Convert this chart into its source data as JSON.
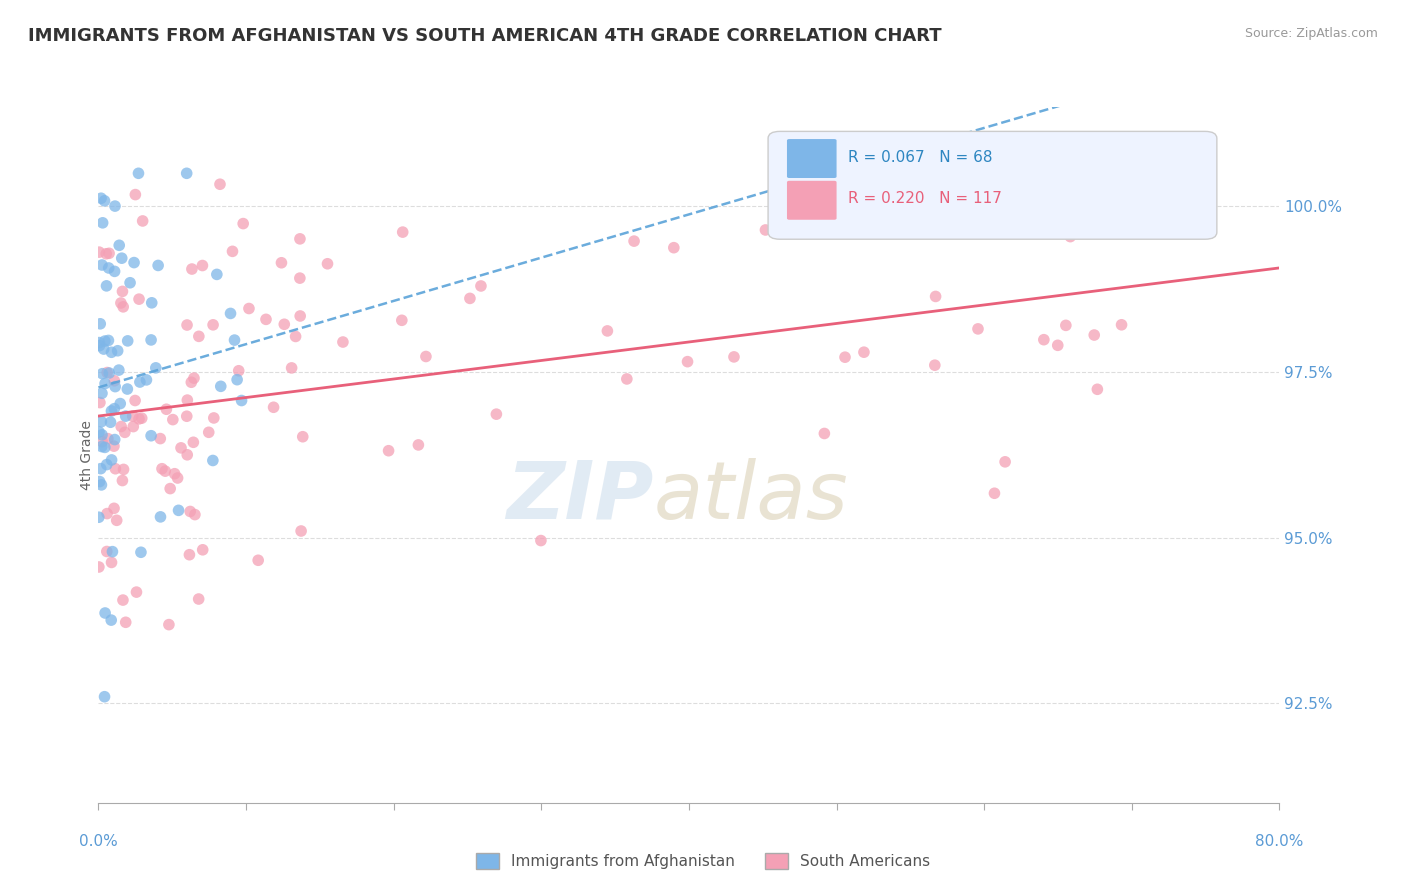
{
  "title": "IMMIGRANTS FROM AFGHANISTAN VS SOUTH AMERICAN 4TH GRADE CORRELATION CHART",
  "source": "Source: ZipAtlas.com",
  "ylabel": "4th Grade",
  "ytick_values": [
    92.5,
    95.0,
    97.5,
    100.0
  ],
  "xmin": 0.0,
  "xmax": 80.0,
  "ymin": 91.0,
  "ymax": 101.5,
  "R_afghan": 0.067,
  "N_afghan": 68,
  "R_south": 0.22,
  "N_south": 117,
  "color_afghan": "#7EB6E8",
  "color_south": "#F4A0B5",
  "color_trendline_afghan": "#5BA3D9",
  "color_trendline_south": "#E8607A",
  "color_axis_labels": "#5B9BD5",
  "legend_R_color_afghan": "#2E86C1",
  "legend_R_color_south": "#E8607A"
}
